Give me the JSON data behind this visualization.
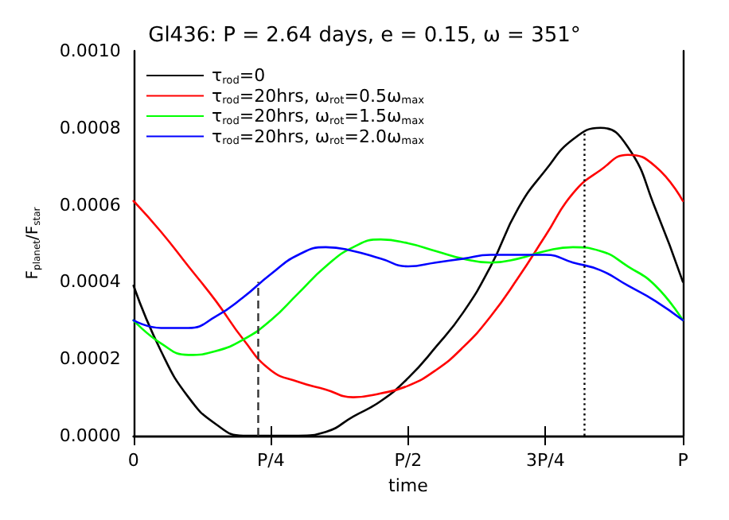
{
  "chart_data": {
    "type": "line",
    "title": "Gl436: P = 2.64 days, e = 0.15, ω = 351°",
    "xlabel": "time",
    "ylabel": "F$_{planet}$/F$_{star}$",
    "categories": [
      "0",
      null,
      null,
      null,
      null,
      "P/4",
      null,
      null,
      null,
      null,
      "P/2",
      null,
      null,
      null,
      null,
      "3P/4",
      null,
      null,
      null,
      null,
      "P"
    ],
    "series": [
      {
        "name": "τ$_{rod}$=0",
        "color": "#000000",
        "values": [
          0.00039,
          0.00022,
          0.0001,
          3e-05,
          0,
          0,
          0,
          1e-05,
          5e-05,
          9e-05,
          0.00015,
          0.00023,
          0.00032,
          0.00044,
          0.00059,
          0.00069,
          0.00077,
          0.0008,
          0.00075,
          0.00059,
          0.0004
        ]
      },
      {
        "name": "τ$_{rod}$=20hrs, ω$_{rot}$=0.5ω$_{max}$",
        "color": "#ff0000",
        "values": [
          0.00061,
          0.00053,
          0.00044,
          0.00035,
          0.00025,
          0.00017,
          0.00014,
          0.00012,
          0.0001,
          0.00011,
          0.00013,
          0.00017,
          0.00023,
          0.00031,
          0.00041,
          0.00052,
          0.00063,
          0.00069,
          0.00073,
          0.0007,
          0.00061
        ]
      },
      {
        "name": "τ$_{rod}$=20hrs, ω$_{rot}$=1.5ω$_{max}$",
        "color": "#00ff00",
        "values": [
          0.0003,
          0.00024,
          0.00021,
          0.00022,
          0.00025,
          0.0003,
          0.00037,
          0.00044,
          0.00049,
          0.00051,
          0.0005,
          0.00048,
          0.00046,
          0.00045,
          0.00046,
          0.00048,
          0.00049,
          0.00048,
          0.00044,
          0.00039,
          0.0003
        ]
      },
      {
        "name": "τ$_{rod}$=20hrs, ω$_{rot}$=2.0ω$_{max}$",
        "color": "#0000ff",
        "values": [
          0.0003,
          0.00028,
          0.00028,
          0.00031,
          0.00036,
          0.00042,
          0.00047,
          0.00049,
          0.00048,
          0.00046,
          0.00044,
          0.00045,
          0.00046,
          0.00047,
          0.00047,
          0.00047,
          0.00045,
          0.00043,
          0.00039,
          0.00035,
          0.0003
        ]
      }
    ],
    "ylim": [
      0,
      0.001
    ],
    "yticks": [
      {
        "value": 0,
        "label": "0.0000"
      },
      {
        "value": 0.0002,
        "label": "0.0002"
      },
      {
        "value": 0.0004,
        "label": "0.0004"
      },
      {
        "value": 0.0006,
        "label": "0.0006"
      },
      {
        "value": 0.0008,
        "label": "0.0008"
      },
      {
        "value": 0.001,
        "label": "0.0010"
      }
    ],
    "grid": false,
    "legend": "top left",
    "marker": "none",
    "line_style": "solid"
  }
}
